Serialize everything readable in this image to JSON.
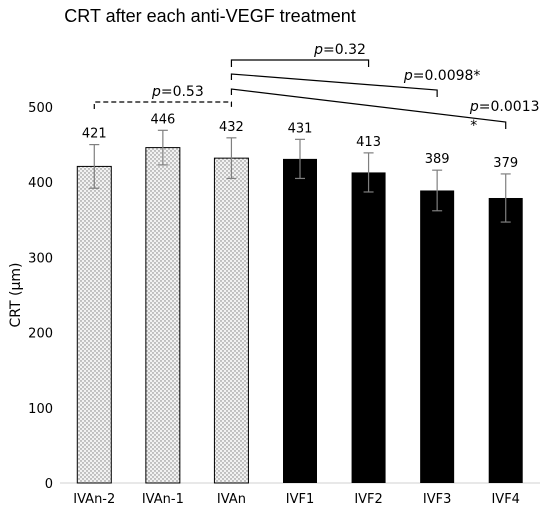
{
  "chart_data": {
    "type": "bar",
    "title": "CRT after each anti-VEGF treatment",
    "xlabel": "",
    "ylabel": "CRT (μm)",
    "ylim": [
      0,
      500
    ],
    "yticks": [
      "0",
      "100",
      "200",
      "300",
      "400",
      "500"
    ],
    "grid": false,
    "categories": [
      "IVAn-2",
      "IVAn-1",
      "IVAn",
      "IVF1",
      "IVF2",
      "IVF3",
      "IVF4"
    ],
    "values": [
      421,
      446,
      432,
      431,
      413,
      389,
      379
    ],
    "value_labels": [
      "421",
      "446",
      "432",
      "431",
      "413",
      "389",
      "379"
    ],
    "error": [
      29,
      23,
      27,
      26,
      26,
      27,
      32
    ],
    "bar_styles": [
      "dotted",
      "dotted",
      "dotted",
      "solid",
      "solid",
      "solid",
      "solid"
    ],
    "colors": {
      "solid": "#000000",
      "dotted_fill": "#f2f2f2",
      "dot": "#7a7a7a",
      "error": "#7f7f7f",
      "axis": "#d0d0d0"
    },
    "annotations": [
      {
        "text": "p=0.53",
        "from": "IVAn-2",
        "to": "IVAn",
        "style": "dashed"
      },
      {
        "text": "p=0.32",
        "from": "IVAn",
        "to": "IVF2",
        "style": "solid"
      },
      {
        "text": "p=0.0098*",
        "from": "IVAn",
        "to": "IVF3",
        "style": "solid"
      },
      {
        "text": "p=0.0013",
        "star": "*",
        "from": "IVAn",
        "to": "IVF4",
        "style": "solid"
      }
    ]
  }
}
